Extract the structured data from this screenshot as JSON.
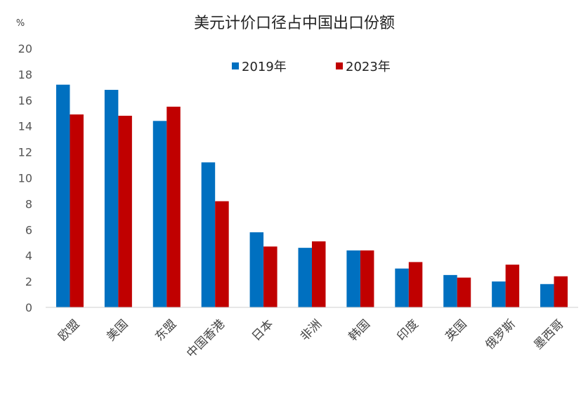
{
  "chart_data": {
    "type": "bar",
    "title": "美元计价口径占中国出口份额",
    "ylabel": "%",
    "xlabel": "",
    "ylim": [
      0,
      20
    ],
    "yticks": [
      0,
      2,
      4,
      6,
      8,
      10,
      12,
      14,
      16,
      18,
      20
    ],
    "grid": false,
    "legend_position": "top-center",
    "categories": [
      "欧盟",
      "美国",
      "东盟",
      "中国香港",
      "日本",
      "非洲",
      "韩国",
      "印度",
      "英国",
      "俄罗斯",
      "墨西哥"
    ],
    "series": [
      {
        "name": "2019年",
        "color": "#0070C0",
        "values": [
          17.2,
          16.8,
          14.4,
          11.2,
          5.8,
          4.6,
          4.4,
          3.0,
          2.5,
          2.0,
          1.8
        ]
      },
      {
        "name": "2023年",
        "color": "#C00000",
        "values": [
          14.9,
          14.8,
          15.5,
          8.2,
          4.7,
          5.1,
          4.4,
          3.5,
          2.3,
          3.3,
          2.4
        ]
      }
    ]
  }
}
